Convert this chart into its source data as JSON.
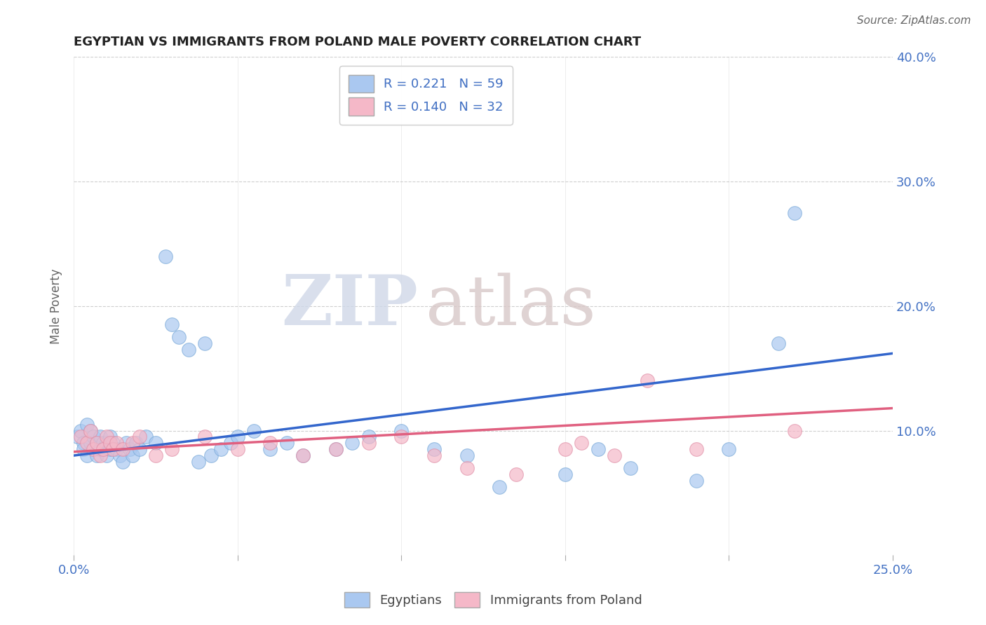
{
  "title": "EGYPTIAN VS IMMIGRANTS FROM POLAND MALE POVERTY CORRELATION CHART",
  "source_text": "Source: ZipAtlas.com",
  "ylabel": "Male Poverty",
  "xlim": [
    0.0,
    0.25
  ],
  "ylim": [
    0.0,
    0.4
  ],
  "xticks": [
    0.0,
    0.05,
    0.1,
    0.15,
    0.2,
    0.25
  ],
  "xtick_labels_show": [
    "0.0%",
    "",
    "",
    "",
    "",
    "25.0%"
  ],
  "yticks": [
    0.1,
    0.2,
    0.3,
    0.4
  ],
  "ytick_labels": [
    "10.0%",
    "20.0%",
    "30.0%",
    "40.0%"
  ],
  "grid_color": "#bbbbbb",
  "background_color": "#ffffff",
  "watermark_zip": "ZIP",
  "watermark_atlas": "atlas",
  "series": [
    {
      "name": "Egyptians",
      "R": 0.221,
      "N": 59,
      "color": "#aac8f0",
      "edge_color": "#7aaad8",
      "trend_color": "#3366cc",
      "x": [
        0.001,
        0.002,
        0.003,
        0.003,
        0.004,
        0.004,
        0.005,
        0.005,
        0.006,
        0.006,
        0.007,
        0.007,
        0.008,
        0.008,
        0.009,
        0.009,
        0.01,
        0.01,
        0.011,
        0.011,
        0.012,
        0.013,
        0.014,
        0.015,
        0.016,
        0.017,
        0.018,
        0.019,
        0.02,
        0.022,
        0.025,
        0.028,
        0.03,
        0.032,
        0.035,
        0.038,
        0.04,
        0.042,
        0.045,
        0.048,
        0.05,
        0.055,
        0.06,
        0.065,
        0.07,
        0.08,
        0.085,
        0.09,
        0.1,
        0.11,
        0.12,
        0.13,
        0.15,
        0.16,
        0.17,
        0.19,
        0.2,
        0.215,
        0.22
      ],
      "y": [
        0.095,
        0.1,
        0.09,
        0.085,
        0.08,
        0.105,
        0.1,
        0.09,
        0.085,
        0.095,
        0.08,
        0.09,
        0.085,
        0.095,
        0.09,
        0.085,
        0.08,
        0.09,
        0.085,
        0.095,
        0.09,
        0.085,
        0.08,
        0.075,
        0.09,
        0.085,
        0.08,
        0.09,
        0.085,
        0.095,
        0.09,
        0.24,
        0.185,
        0.175,
        0.165,
        0.075,
        0.17,
        0.08,
        0.085,
        0.09,
        0.095,
        0.1,
        0.085,
        0.09,
        0.08,
        0.085,
        0.09,
        0.095,
        0.1,
        0.085,
        0.08,
        0.055,
        0.065,
        0.085,
        0.07,
        0.06,
        0.085,
        0.17,
        0.275
      ],
      "trend_x": [
        0.0,
        0.25
      ],
      "trend_y": [
        0.08,
        0.162
      ]
    },
    {
      "name": "Immigrants from Poland",
      "R": 0.14,
      "N": 32,
      "color": "#f5b8c8",
      "edge_color": "#e090a8",
      "trend_color": "#e06080",
      "x": [
        0.002,
        0.004,
        0.005,
        0.006,
        0.007,
        0.008,
        0.009,
        0.01,
        0.011,
        0.012,
        0.013,
        0.015,
        0.018,
        0.02,
        0.025,
        0.03,
        0.04,
        0.05,
        0.06,
        0.07,
        0.08,
        0.09,
        0.1,
        0.11,
        0.12,
        0.135,
        0.15,
        0.155,
        0.165,
        0.175,
        0.19,
        0.22
      ],
      "y": [
        0.095,
        0.09,
        0.1,
        0.085,
        0.09,
        0.08,
        0.085,
        0.095,
        0.09,
        0.085,
        0.09,
        0.085,
        0.09,
        0.095,
        0.08,
        0.085,
        0.095,
        0.085,
        0.09,
        0.08,
        0.085,
        0.09,
        0.095,
        0.08,
        0.07,
        0.065,
        0.085,
        0.09,
        0.08,
        0.14,
        0.085,
        0.1
      ],
      "trend_x": [
        0.0,
        0.25
      ],
      "trend_y": [
        0.083,
        0.118
      ]
    }
  ]
}
